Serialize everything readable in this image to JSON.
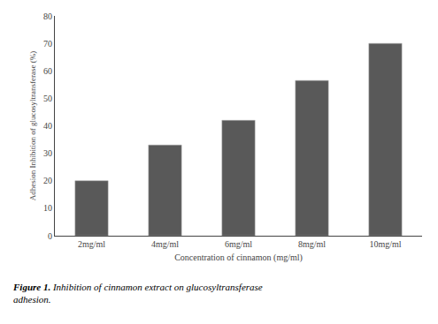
{
  "chart_data": {
    "type": "bar",
    "categories": [
      "2mg/ml",
      "4mg/ml",
      "6mg/ml",
      "8mg/ml",
      "10mg/ml"
    ],
    "values": [
      20,
      33,
      42,
      56.5,
      70
    ],
    "color": "#595959",
    "x_label": "Concentration of cinnamon (mg/ml)",
    "y_label": "Adhesion Inhibition of glucosyltransferase (%)",
    "ylim": [
      0,
      80
    ],
    "yticks": [
      0,
      10,
      20,
      30,
      40,
      50,
      60,
      70,
      80
    ],
    "grid": false,
    "annotations": [
      "Figure 1.",
      "Inhibition of cinnamon extract on glucosyltransferase\nadhesion."
    ]
  }
}
